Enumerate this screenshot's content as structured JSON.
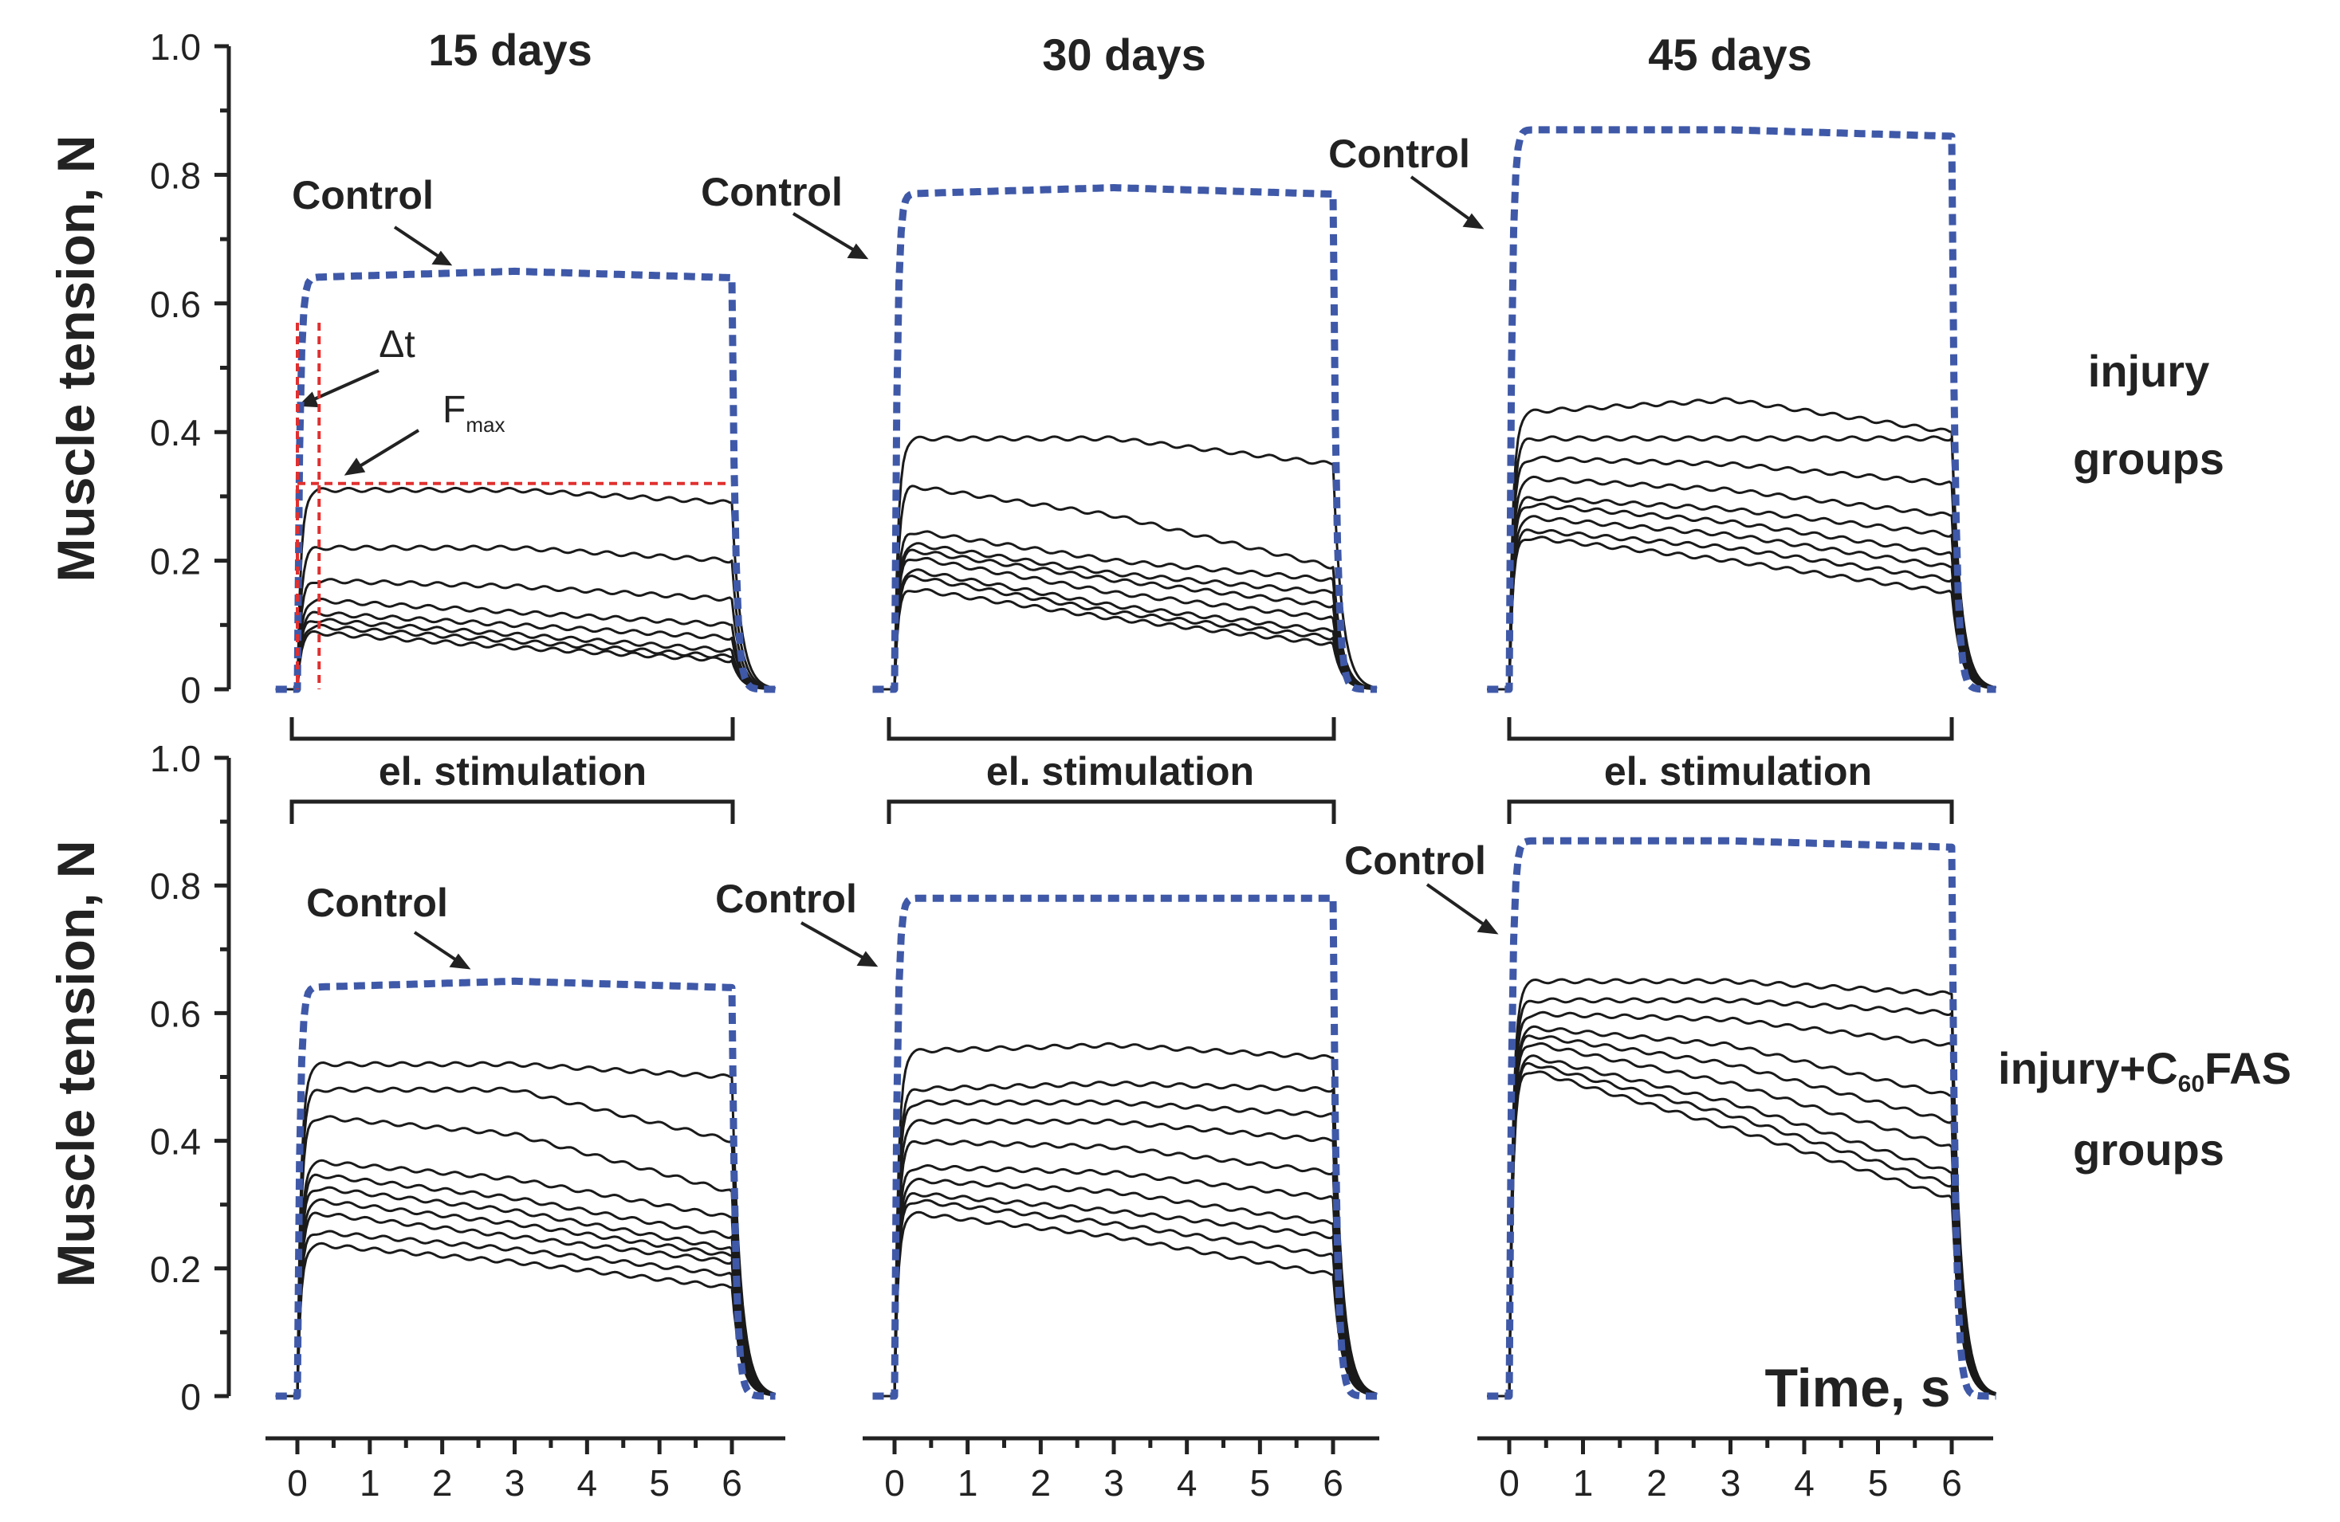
{
  "colors": {
    "control": "#3f59a8",
    "trace": "#1a1a1a",
    "annotation": "#e0302f",
    "axis": "#222222"
  },
  "figure": {
    "column_titles": [
      "15 days",
      "30 days",
      "45 days"
    ],
    "y_axis_label": "Muscle tension, N",
    "x_axis_label": "Time, s",
    "stimulation_label": "el. stimulation",
    "row_labels": {
      "top_line1": "injury",
      "top_line2": "groups",
      "bottom_line1_prefix": "injury+C",
      "bottom_line1_sub": "60",
      "bottom_line1_suffix": "FAS",
      "bottom_line2": "groups"
    },
    "control_label": "Control",
    "annotations": {
      "delta_t": "Δt",
      "fmax_main": "F",
      "fmax_sub": "max"
    },
    "y_tick_labels": [
      "0",
      "0.2",
      "0.4",
      "0.6",
      "0.8",
      "1.0"
    ],
    "x_tick_labels": [
      "0",
      "1",
      "2",
      "3",
      "4",
      "5",
      "6"
    ]
  },
  "chart_data": [
    {
      "type": "line",
      "panel": "injury 15 days",
      "title": "15 days",
      "xlabel": "Time, s",
      "ylabel": "Muscle tension, N",
      "xlim": [
        -0.4,
        6.6
      ],
      "ylim": [
        0,
        1.0
      ],
      "series": [
        {
          "name": "Control",
          "style": "dashed",
          "plateau": [
            0.64,
            0.65,
            0.64
          ]
        },
        {
          "name": "trace 1",
          "plateau": [
            0.31,
            0.31,
            0.29
          ]
        },
        {
          "name": "trace 2",
          "plateau": [
            0.22,
            0.22,
            0.2
          ]
        },
        {
          "name": "trace 3",
          "plateau": [
            0.17,
            0.16,
            0.14
          ]
        },
        {
          "name": "trace 4",
          "plateau": [
            0.14,
            0.12,
            0.1
          ]
        },
        {
          "name": "trace 5",
          "plateau": [
            0.12,
            0.1,
            0.08
          ]
        },
        {
          "name": "trace 6",
          "plateau": [
            0.11,
            0.085,
            0.06
          ]
        },
        {
          "name": "trace 7",
          "plateau": [
            0.1,
            0.075,
            0.05
          ]
        },
        {
          "name": "trace 8",
          "plateau": [
            0.09,
            0.065,
            0.045
          ]
        }
      ],
      "annotations": {
        "delta_t_s": 0.3,
        "fmax_N": 0.32
      }
    },
    {
      "type": "line",
      "panel": "injury 30 days",
      "title": "30 days",
      "xlabel": "Time, s",
      "ylabel": "Muscle tension, N",
      "xlim": [
        -0.4,
        6.6
      ],
      "ylim": [
        0,
        1.0
      ],
      "series": [
        {
          "name": "Control",
          "style": "dashed",
          "plateau": [
            0.77,
            0.78,
            0.77
          ]
        },
        {
          "name": "trace 1",
          "plateau": [
            0.39,
            0.39,
            0.35
          ]
        },
        {
          "name": "trace 2",
          "plateau": [
            0.32,
            0.27,
            0.19
          ]
        },
        {
          "name": "trace 3",
          "plateau": [
            0.25,
            0.2,
            0.17
          ]
        },
        {
          "name": "trace 4",
          "plateau": [
            0.23,
            0.18,
            0.15
          ]
        },
        {
          "name": "trace 5",
          "plateau": [
            0.22,
            0.17,
            0.13
          ]
        },
        {
          "name": "trace 6",
          "plateau": [
            0.21,
            0.15,
            0.11
          ]
        },
        {
          "name": "trace 7",
          "plateau": [
            0.19,
            0.13,
            0.09
          ]
        },
        {
          "name": "trace 8",
          "plateau": [
            0.18,
            0.12,
            0.08
          ]
        },
        {
          "name": "trace 9",
          "plateau": [
            0.16,
            0.11,
            0.07
          ]
        }
      ]
    },
    {
      "type": "line",
      "panel": "injury 45 days",
      "title": "45 days",
      "xlabel": "Time, s",
      "ylabel": "Muscle tension, N",
      "xlim": [
        -0.4,
        6.6
      ],
      "ylim": [
        0,
        1.0
      ],
      "series": [
        {
          "name": "Control",
          "style": "dashed",
          "plateau": [
            0.87,
            0.87,
            0.86
          ]
        },
        {
          "name": "trace 1",
          "plateau": [
            0.43,
            0.45,
            0.4
          ]
        },
        {
          "name": "trace 2",
          "plateau": [
            0.39,
            0.39,
            0.39
          ]
        },
        {
          "name": "trace 3",
          "plateau": [
            0.36,
            0.35,
            0.32
          ]
        },
        {
          "name": "trace 4",
          "plateau": [
            0.33,
            0.31,
            0.27
          ]
        },
        {
          "name": "trace 5",
          "plateau": [
            0.3,
            0.28,
            0.24
          ]
        },
        {
          "name": "trace 6",
          "plateau": [
            0.29,
            0.26,
            0.21
          ]
        },
        {
          "name": "trace 7",
          "plateau": [
            0.27,
            0.24,
            0.19
          ]
        },
        {
          "name": "trace 8",
          "plateau": [
            0.25,
            0.22,
            0.17
          ]
        },
        {
          "name": "trace 9",
          "plateau": [
            0.24,
            0.2,
            0.15
          ]
        }
      ]
    },
    {
      "type": "line",
      "panel": "injury+C60FAS 15 days",
      "title": "15 days",
      "xlabel": "Time, s",
      "ylabel": "Muscle tension, N",
      "xlim": [
        -0.4,
        6.6
      ],
      "ylim": [
        0,
        1.0
      ],
      "series": [
        {
          "name": "Control",
          "style": "dashed",
          "plateau": [
            0.64,
            0.65,
            0.64
          ]
        },
        {
          "name": "trace 1",
          "plateau": [
            0.52,
            0.52,
            0.5
          ]
        },
        {
          "name": "trace 2",
          "plateau": [
            0.48,
            0.48,
            0.4
          ]
        },
        {
          "name": "trace 3",
          "plateau": [
            0.44,
            0.41,
            0.32
          ]
        },
        {
          "name": "trace 4",
          "plateau": [
            0.37,
            0.34,
            0.28
          ]
        },
        {
          "name": "trace 5",
          "plateau": [
            0.35,
            0.31,
            0.25
          ]
        },
        {
          "name": "trace 6",
          "plateau": [
            0.33,
            0.29,
            0.23
          ]
        },
        {
          "name": "trace 7",
          "plateau": [
            0.31,
            0.27,
            0.22
          ]
        },
        {
          "name": "trace 8",
          "plateau": [
            0.29,
            0.25,
            0.21
          ]
        },
        {
          "name": "trace 9",
          "plateau": [
            0.26,
            0.23,
            0.19
          ]
        },
        {
          "name": "trace 10",
          "plateau": [
            0.24,
            0.21,
            0.17
          ]
        }
      ]
    },
    {
      "type": "line",
      "panel": "injury+C60FAS 30 days",
      "title": "30 days",
      "xlabel": "Time, s",
      "ylabel": "Muscle tension, N",
      "xlim": [
        -0.4,
        6.6
      ],
      "ylim": [
        0,
        1.0
      ],
      "series": [
        {
          "name": "Control",
          "style": "dashed",
          "plateau": [
            0.78,
            0.78,
            0.78
          ]
        },
        {
          "name": "trace 1",
          "plateau": [
            0.54,
            0.55,
            0.53
          ]
        },
        {
          "name": "trace 2",
          "plateau": [
            0.48,
            0.49,
            0.48
          ]
        },
        {
          "name": "trace 3",
          "plateau": [
            0.46,
            0.46,
            0.44
          ]
        },
        {
          "name": "trace 4",
          "plateau": [
            0.43,
            0.43,
            0.4
          ]
        },
        {
          "name": "trace 5",
          "plateau": [
            0.4,
            0.39,
            0.35
          ]
        },
        {
          "name": "trace 6",
          "plateau": [
            0.36,
            0.35,
            0.31
          ]
        },
        {
          "name": "trace 7",
          "plateau": [
            0.34,
            0.32,
            0.27
          ]
        },
        {
          "name": "trace 8",
          "plateau": [
            0.32,
            0.29,
            0.25
          ]
        },
        {
          "name": "trace 9",
          "plateau": [
            0.31,
            0.27,
            0.22
          ]
        },
        {
          "name": "trace 10",
          "plateau": [
            0.29,
            0.25,
            0.19
          ]
        }
      ]
    },
    {
      "type": "line",
      "panel": "injury+C60FAS 45 days",
      "title": "45 days",
      "xlabel": "Time, s",
      "ylabel": "Muscle tension, N",
      "xlim": [
        -0.4,
        6.6
      ],
      "ylim": [
        0,
        1.0
      ],
      "series": [
        {
          "name": "Control",
          "style": "dashed",
          "plateau": [
            0.87,
            0.87,
            0.86
          ]
        },
        {
          "name": "trace 1",
          "plateau": [
            0.65,
            0.65,
            0.63
          ]
        },
        {
          "name": "trace 2",
          "plateau": [
            0.62,
            0.62,
            0.6
          ]
        },
        {
          "name": "trace 3",
          "plateau": [
            0.6,
            0.59,
            0.55
          ]
        },
        {
          "name": "trace 4",
          "plateau": [
            0.58,
            0.55,
            0.47
          ]
        },
        {
          "name": "trace 5",
          "plateau": [
            0.57,
            0.52,
            0.43
          ]
        },
        {
          "name": "trace 6",
          "plateau": [
            0.56,
            0.49,
            0.39
          ]
        },
        {
          "name": "trace 7",
          "plateau": [
            0.54,
            0.46,
            0.35
          ]
        },
        {
          "name": "trace 8",
          "plateau": [
            0.53,
            0.44,
            0.33
          ]
        },
        {
          "name": "trace 9",
          "plateau": [
            0.52,
            0.42,
            0.31
          ]
        }
      ]
    }
  ]
}
